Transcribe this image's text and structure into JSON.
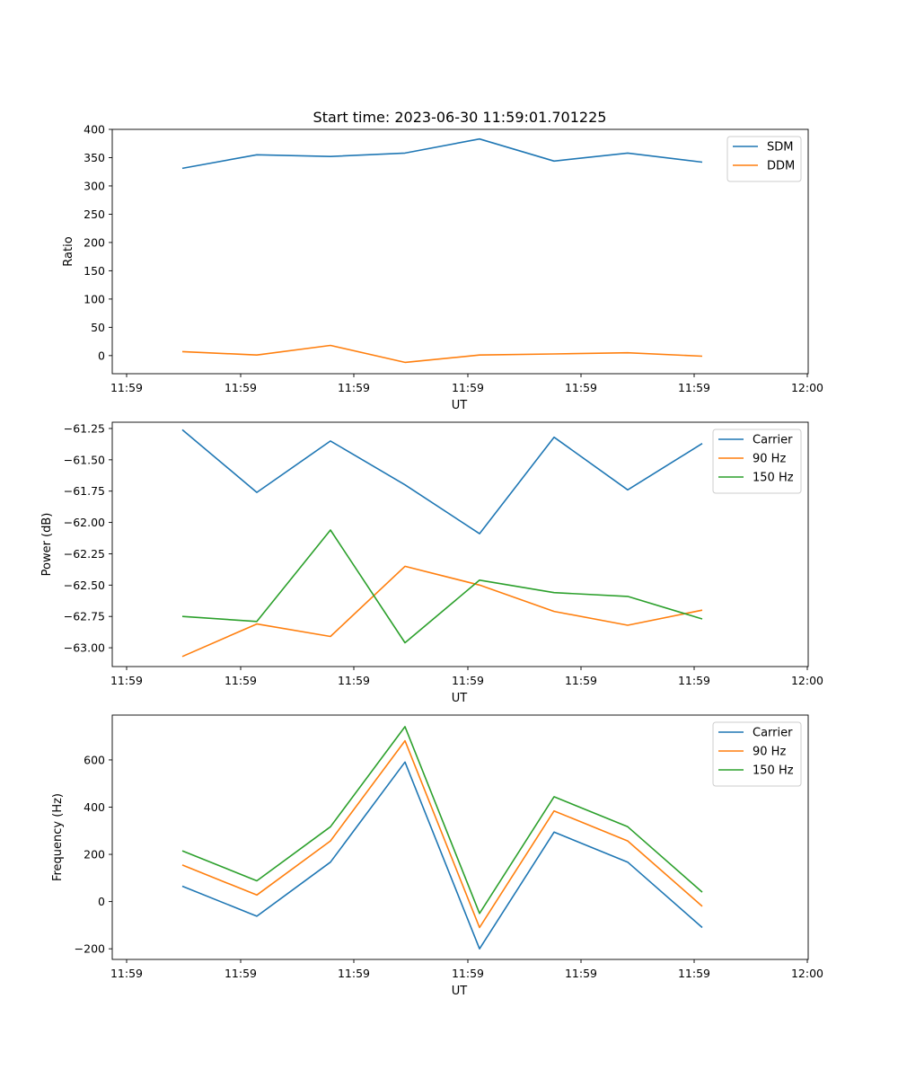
{
  "chart_data": [
    {
      "type": "line",
      "title": "Start time: 2023-06-30 11:59:01.701225",
      "xlabel": "UT",
      "ylabel": "Ratio",
      "x_tick_labels": [
        "11:59",
        "11:59",
        "11:59",
        "11:59",
        "11:59",
        "11:59",
        "11:59",
        "12:00"
      ],
      "y_ticks": [
        0,
        50,
        100,
        150,
        200,
        250,
        300,
        350,
        400
      ],
      "ylim": [
        -32,
        400
      ],
      "legend_position": "upper right",
      "grid": false,
      "series": [
        {
          "name": "SDM",
          "color": "#1f77b4",
          "values": [
            331,
            355,
            352,
            358,
            383,
            344,
            358,
            342
          ]
        },
        {
          "name": "DDM",
          "color": "#ff7f0e",
          "values": [
            7,
            1,
            18,
            -12,
            1,
            3,
            5,
            -1
          ]
        }
      ]
    },
    {
      "type": "line",
      "title": "",
      "xlabel": "UT",
      "ylabel": "Power (dB)",
      "x_tick_labels": [
        "11:59",
        "11:59",
        "11:59",
        "11:59",
        "11:59",
        "11:59",
        "11:59",
        "12:00"
      ],
      "y_ticks": [
        -61.25,
        -61.5,
        -61.75,
        -62.0,
        -62.25,
        -62.5,
        -62.75,
        -63.0
      ],
      "y_tick_labels": [
        "−61.25",
        "−61.50",
        "−61.75",
        "−62.00",
        "−62.25",
        "−62.50",
        "−62.75",
        "−63.00"
      ],
      "ylim": [
        -63.15,
        -61.2
      ],
      "legend_position": "upper right",
      "grid": false,
      "series": [
        {
          "name": "Carrier",
          "color": "#1f77b4",
          "values": [
            -61.26,
            -61.76,
            -61.35,
            -61.7,
            -62.09,
            -61.32,
            -61.74,
            -61.37
          ]
        },
        {
          "name": "90 Hz",
          "color": "#ff7f0e",
          "values": [
            -63.07,
            -62.81,
            -62.91,
            -62.35,
            -62.5,
            -62.71,
            -62.82,
            -62.7
          ]
        },
        {
          "name": "150 Hz",
          "color": "#2ca02c",
          "values": [
            -62.75,
            -62.79,
            -62.06,
            -62.96,
            -62.46,
            -62.56,
            -62.59,
            -62.77
          ]
        }
      ]
    },
    {
      "type": "line",
      "title": "",
      "xlabel": "UT",
      "ylabel": "Frequency (Hz)",
      "x_tick_labels": [
        "11:59",
        "11:59",
        "11:59",
        "11:59",
        "11:59",
        "11:59",
        "11:59",
        "12:00"
      ],
      "y_ticks": [
        -200,
        0,
        200,
        400,
        600
      ],
      "y_tick_labels": [
        "−200",
        "0",
        "200",
        "400",
        "600"
      ],
      "ylim": [
        -245,
        790
      ],
      "legend_position": "upper right",
      "grid": false,
      "series": [
        {
          "name": "Carrier",
          "color": "#1f77b4",
          "values": [
            65,
            -62,
            167,
            591,
            -200,
            294,
            167,
            -110
          ]
        },
        {
          "name": "90 Hz",
          "color": "#ff7f0e",
          "values": [
            155,
            28,
            257,
            681,
            -110,
            384,
            257,
            -20
          ]
        },
        {
          "name": "150 Hz",
          "color": "#2ca02c",
          "values": [
            215,
            88,
            317,
            741,
            -50,
            444,
            317,
            40
          ]
        }
      ]
    }
  ]
}
